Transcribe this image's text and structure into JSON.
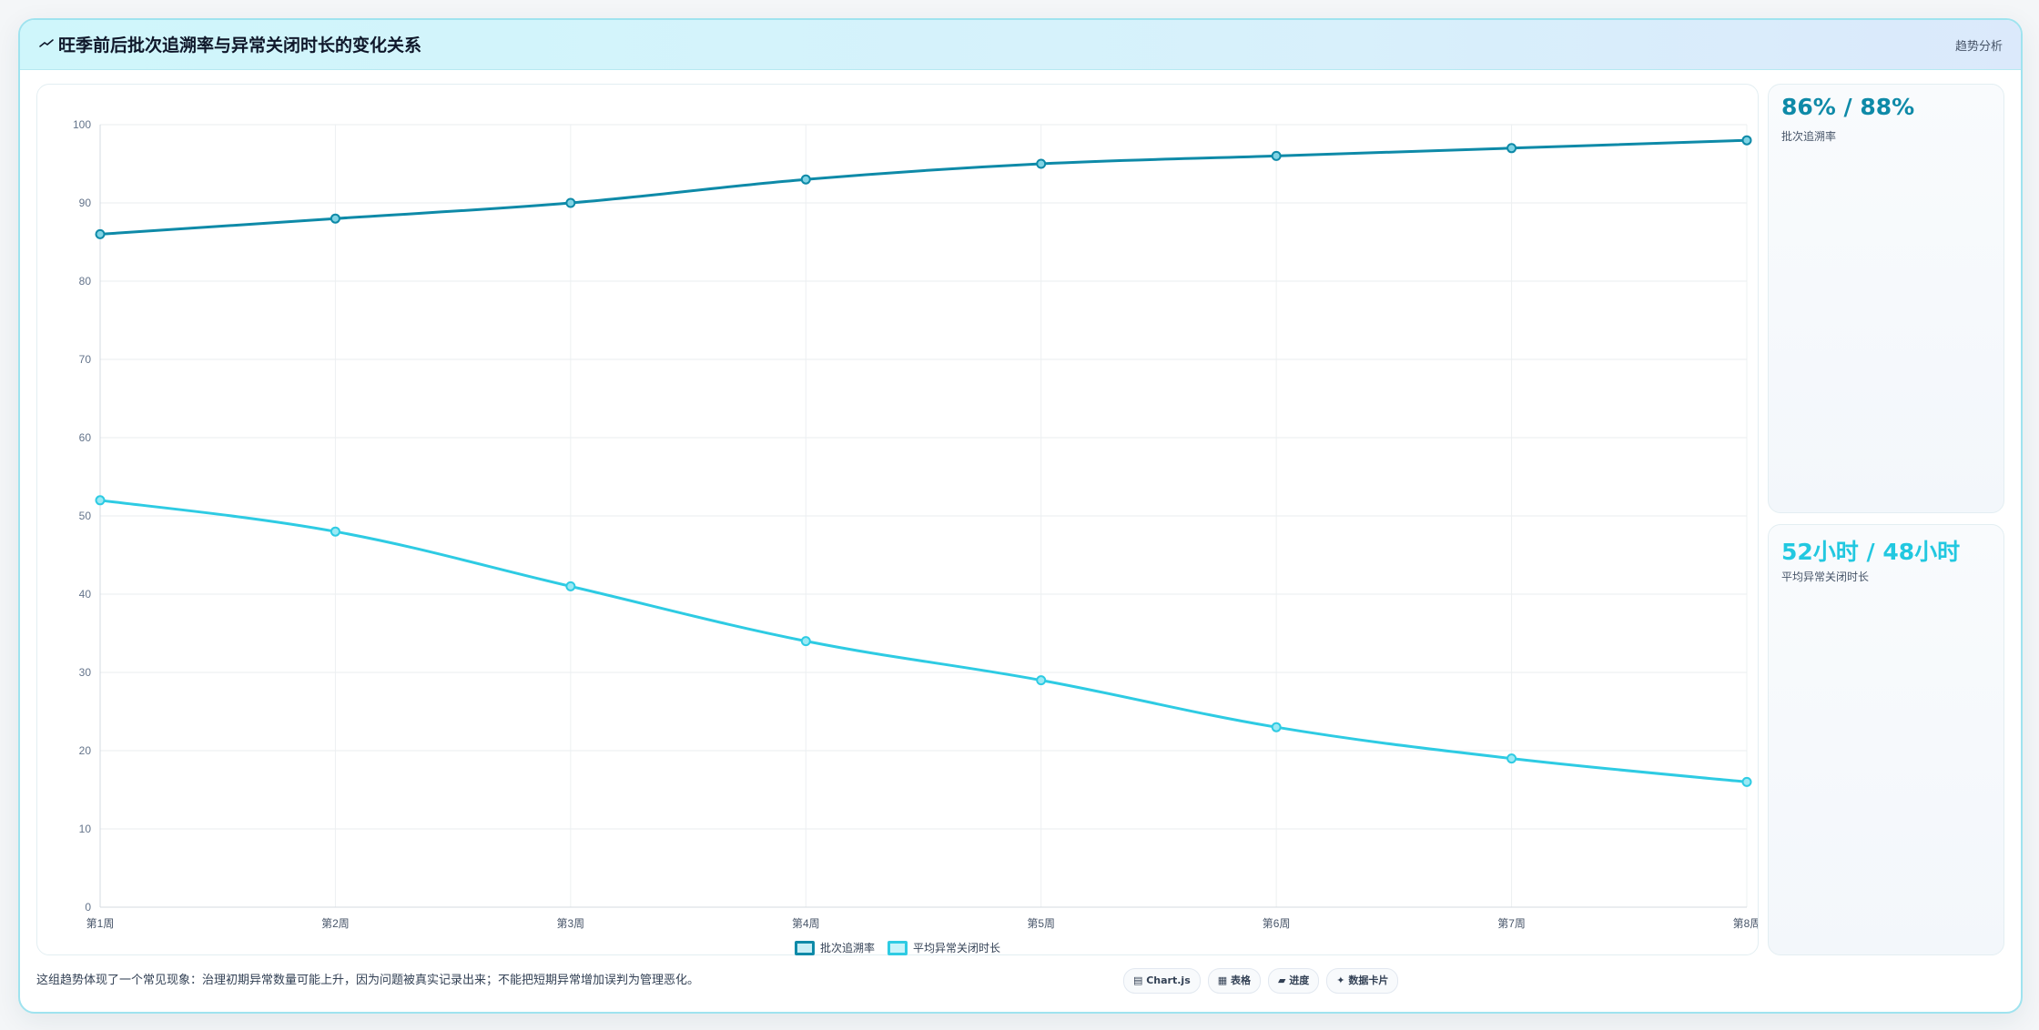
{
  "header": {
    "title": "旺季前后批次追溯率与异常关闭时长的变化关系",
    "right_label": "趋势分析",
    "icon": "trend-line-icon"
  },
  "stats": [
    {
      "value": "86% / 88%",
      "label": "批次追溯率"
    },
    {
      "value": "52小时 / 48小时",
      "label": "平均异常关闭时长"
    }
  ],
  "footer": {
    "note": "这组趋势体现了一个常见现象：治理初期异常数量可能上升，因为问题被真实记录出来；不能把短期异常增加误判为管理恶化。",
    "chips": [
      {
        "icon": "chart-icon",
        "label": "Chart.js"
      },
      {
        "icon": "table-icon",
        "label": "表格"
      },
      {
        "icon": "progress-icon",
        "label": "进度"
      },
      {
        "icon": "sparkle-icon",
        "label": "数据卡片"
      }
    ]
  },
  "chart_data": {
    "type": "line",
    "categories": [
      "第1周",
      "第2周",
      "第3周",
      "第4周",
      "第5周",
      "第6周",
      "第7周",
      "第8周"
    ],
    "series": [
      {
        "name": "批次追溯率",
        "values": [
          86,
          88,
          90,
          93,
          95,
          96,
          97,
          98
        ],
        "color": "#0e8aa8"
      },
      {
        "name": "平均异常关闭时长",
        "values": [
          52,
          48,
          41,
          34,
          29,
          23,
          19,
          16
        ],
        "color": "#2ecbe3"
      }
    ],
    "ylim": [
      0,
      100
    ],
    "yticks": [
      0,
      10,
      20,
      30,
      40,
      50,
      60,
      70,
      80,
      90,
      100
    ],
    "grid": true,
    "legend": "bottom-center"
  }
}
